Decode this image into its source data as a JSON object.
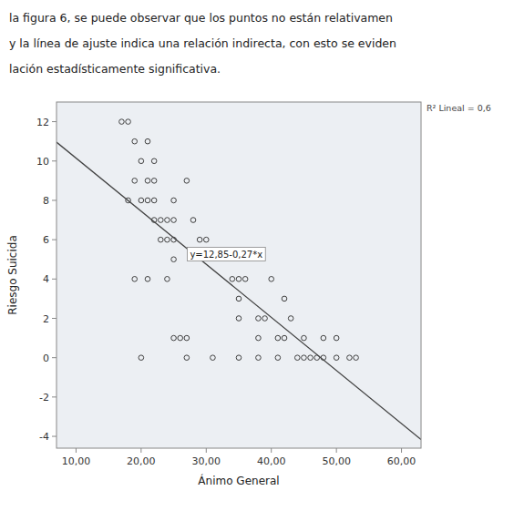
{
  "chart_data": {
    "type": "scatter",
    "subtitle": [
      "la figura 6, se puede observar que los puntos no están relativamen",
      "y la línea de ajuste indica una relación indirecta, con esto se eviden",
      "lación estadísticamente significativa."
    ],
    "xlabel": "Ánimo General",
    "ylabel": "Riesgo Suicida",
    "annotations": [
      "y=12,85-0,27*x",
      "R² Lineal = 0,6"
    ],
    "xlim": [
      7,
      63
    ],
    "ylim": [
      -4.6,
      13
    ],
    "xticks": [
      {
        "value": 10,
        "label": "10,00"
      },
      {
        "value": 20,
        "label": "20,00"
      },
      {
        "value": 30,
        "label": "30,00"
      },
      {
        "value": 40,
        "label": "40,00"
      },
      {
        "value": 50,
        "label": "50,00"
      },
      {
        "value": 60,
        "label": "60,00"
      }
    ],
    "yticks": [
      -4,
      -2,
      0,
      2,
      4,
      6,
      8,
      10,
      12
    ],
    "grid": false,
    "series": [
      {
        "type": "scatter",
        "marker": "circle",
        "color": "#404040",
        "x": [
          17,
          18,
          19,
          21,
          20,
          22,
          19,
          21,
          22,
          27,
          18,
          20,
          21,
          22,
          25,
          22,
          23,
          24,
          25,
          28,
          23,
          24,
          25,
          29,
          30,
          25,
          19,
          21,
          24,
          34,
          35,
          36,
          40,
          35,
          42,
          35,
          38,
          39,
          43,
          25,
          26,
          27,
          38,
          41,
          42,
          45,
          48,
          50,
          20,
          27,
          31,
          35,
          38,
          41,
          44,
          45,
          46,
          47,
          48,
          50,
          52,
          53
        ],
        "values": [
          12,
          12,
          11,
          11,
          10,
          10,
          9,
          9,
          9,
          9,
          8,
          8,
          8,
          8,
          8,
          7,
          7,
          7,
          7,
          7,
          6,
          6,
          6,
          6,
          6,
          5,
          4,
          4,
          4,
          4,
          4,
          4,
          4,
          3,
          3,
          2,
          2,
          2,
          2,
          1,
          1,
          1,
          1,
          1,
          1,
          1,
          1,
          1,
          0,
          0,
          0,
          0,
          0,
          0,
          0,
          0,
          0,
          0,
          0,
          0,
          0,
          0
        ]
      },
      {
        "type": "line",
        "line_style": "solid",
        "color": "#404040",
        "x": [
          7,
          63
        ],
        "values": [
          10.96,
          -4.16
        ]
      }
    ]
  }
}
